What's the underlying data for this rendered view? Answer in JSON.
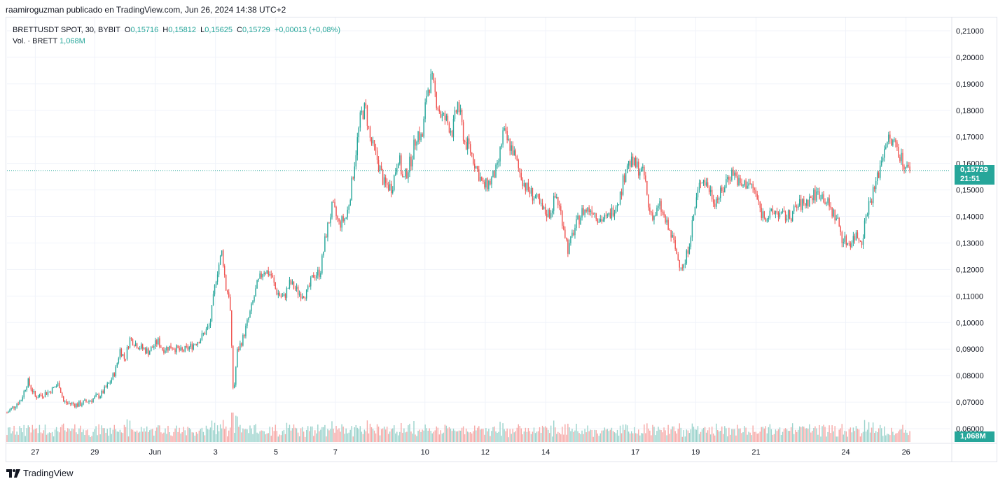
{
  "header": {
    "attribution": "raamiroguzman publicado en TradingView.com, Jun 26, 2024 14:38 UTC+2"
  },
  "legend": {
    "symbol": "BRETTUSDT SPOT, 30, BYBIT",
    "open_label": "O",
    "open": "0,15716",
    "high_label": "H",
    "high": "0,15812",
    "low_label": "L",
    "low": "0,15625",
    "close_label": "C",
    "close": "0,15729",
    "change": "+0,00013 (+0,08%)",
    "volume_label": "Vol. · BRETT",
    "volume": "1,068M"
  },
  "badges": {
    "price": "0,15729",
    "countdown": "21:51",
    "volume": "1,068M"
  },
  "footer": {
    "brand": "TradingView"
  },
  "colors": {
    "up": "#26a69a",
    "down": "#ef5350",
    "up_volume": "#9bd3cc",
    "down_volume": "#f6a9a7",
    "grid": "#f0f3fa"
  },
  "chart_data": {
    "type": "candlestick",
    "y_axis_ticks": [
      "0,06000",
      "0,07000",
      "0,08000",
      "0,09000",
      "0,10000",
      "0,11000",
      "0,12000",
      "0,13000",
      "0,14000",
      "0,15000",
      "0,16000",
      "0,17000",
      "0,18000",
      "0,19000",
      "0,20000",
      "0,21000"
    ],
    "y_tick_values": [
      0.06,
      0.07,
      0.08,
      0.09,
      0.1,
      0.11,
      0.12,
      0.13,
      0.14,
      0.15,
      0.16,
      0.17,
      0.18,
      0.19,
      0.2,
      0.21
    ],
    "ylim": [
      0.055,
      0.215
    ],
    "x_axis_ticks": [
      {
        "label": "27",
        "t": 0.03
      },
      {
        "label": "29",
        "t": 0.093
      },
      {
        "label": "Jun",
        "t": 0.157
      },
      {
        "label": "3",
        "t": 0.221
      },
      {
        "label": "5",
        "t": 0.285
      },
      {
        "label": "7",
        "t": 0.348
      },
      {
        "label": "10",
        "t": 0.443
      },
      {
        "label": "12",
        "t": 0.507
      },
      {
        "label": "14",
        "t": 0.571
      },
      {
        "label": "17",
        "t": 0.666
      },
      {
        "label": "19",
        "t": 0.73
      },
      {
        "label": "21",
        "t": 0.794
      },
      {
        "label": "24",
        "t": 0.889
      },
      {
        "label": "26",
        "t": 0.953
      }
    ],
    "x_domain": [
      0,
      1
    ],
    "last_price": 0.15729,
    "close_path": [
      [
        0.0,
        0.066
      ],
      [
        0.015,
        0.071
      ],
      [
        0.022,
        0.078
      ],
      [
        0.03,
        0.072
      ],
      [
        0.045,
        0.074
      ],
      [
        0.055,
        0.077
      ],
      [
        0.06,
        0.07
      ],
      [
        0.075,
        0.069
      ],
      [
        0.09,
        0.071
      ],
      [
        0.1,
        0.073
      ],
      [
        0.11,
        0.078
      ],
      [
        0.115,
        0.082
      ],
      [
        0.12,
        0.09
      ],
      [
        0.125,
        0.086
      ],
      [
        0.13,
        0.094
      ],
      [
        0.14,
        0.091
      ],
      [
        0.15,
        0.089
      ],
      [
        0.16,
        0.093
      ],
      [
        0.165,
        0.09
      ],
      [
        0.175,
        0.091
      ],
      [
        0.185,
        0.089
      ],
      [
        0.195,
        0.091
      ],
      [
        0.205,
        0.094
      ],
      [
        0.215,
        0.099
      ],
      [
        0.222,
        0.118
      ],
      [
        0.228,
        0.127
      ],
      [
        0.232,
        0.113
      ],
      [
        0.236,
        0.11
      ],
      [
        0.24,
        0.072
      ],
      [
        0.244,
        0.089
      ],
      [
        0.25,
        0.094
      ],
      [
        0.258,
        0.104
      ],
      [
        0.265,
        0.114
      ],
      [
        0.272,
        0.12
      ],
      [
        0.28,
        0.118
      ],
      [
        0.285,
        0.112
      ],
      [
        0.293,
        0.109
      ],
      [
        0.3,
        0.115
      ],
      [
        0.31,
        0.111
      ],
      [
        0.318,
        0.111
      ],
      [
        0.325,
        0.118
      ],
      [
        0.332,
        0.119
      ],
      [
        0.338,
        0.133
      ],
      [
        0.345,
        0.144
      ],
      [
        0.352,
        0.137
      ],
      [
        0.36,
        0.14
      ],
      [
        0.365,
        0.151
      ],
      [
        0.37,
        0.165
      ],
      [
        0.375,
        0.178
      ],
      [
        0.38,
        0.181
      ],
      [
        0.385,
        0.169
      ],
      [
        0.392,
        0.162
      ],
      [
        0.4,
        0.152
      ],
      [
        0.408,
        0.151
      ],
      [
        0.415,
        0.163
      ],
      [
        0.42,
        0.153
      ],
      [
        0.428,
        0.161
      ],
      [
        0.435,
        0.172
      ],
      [
        0.44,
        0.169
      ],
      [
        0.445,
        0.187
      ],
      [
        0.45,
        0.192
      ],
      [
        0.455,
        0.184
      ],
      [
        0.46,
        0.178
      ],
      [
        0.466,
        0.176
      ],
      [
        0.472,
        0.172
      ],
      [
        0.478,
        0.183
      ],
      [
        0.485,
        0.168
      ],
      [
        0.49,
        0.166
      ],
      [
        0.5,
        0.156
      ],
      [
        0.505,
        0.151
      ],
      [
        0.512,
        0.153
      ],
      [
        0.52,
        0.158
      ],
      [
        0.526,
        0.172
      ],
      [
        0.531,
        0.168
      ],
      [
        0.536,
        0.165
      ],
      [
        0.542,
        0.158
      ],
      [
        0.55,
        0.151
      ],
      [
        0.56,
        0.147
      ],
      [
        0.568,
        0.142
      ],
      [
        0.575,
        0.141
      ],
      [
        0.582,
        0.148
      ],
      [
        0.588,
        0.14
      ],
      [
        0.595,
        0.127
      ],
      [
        0.6,
        0.134
      ],
      [
        0.61,
        0.142
      ],
      [
        0.62,
        0.143
      ],
      [
        0.628,
        0.139
      ],
      [
        0.636,
        0.139
      ],
      [
        0.643,
        0.143
      ],
      [
        0.65,
        0.148
      ],
      [
        0.657,
        0.16
      ],
      [
        0.663,
        0.16
      ],
      [
        0.67,
        0.158
      ],
      [
        0.676,
        0.155
      ],
      [
        0.68,
        0.143
      ],
      [
        0.686,
        0.14
      ],
      [
        0.692,
        0.144
      ],
      [
        0.7,
        0.136
      ],
      [
        0.706,
        0.131
      ],
      [
        0.712,
        0.123
      ],
      [
        0.718,
        0.121
      ],
      [
        0.724,
        0.132
      ],
      [
        0.73,
        0.145
      ],
      [
        0.736,
        0.155
      ],
      [
        0.742,
        0.152
      ],
      [
        0.75,
        0.146
      ],
      [
        0.758,
        0.149
      ],
      [
        0.764,
        0.155
      ],
      [
        0.77,
        0.157
      ],
      [
        0.778,
        0.151
      ],
      [
        0.785,
        0.153
      ],
      [
        0.792,
        0.15
      ],
      [
        0.8,
        0.141
      ],
      [
        0.808,
        0.14
      ],
      [
        0.815,
        0.142
      ],
      [
        0.822,
        0.14
      ],
      [
        0.83,
        0.14
      ],
      [
        0.838,
        0.144
      ],
      [
        0.846,
        0.145
      ],
      [
        0.855,
        0.148
      ],
      [
        0.862,
        0.149
      ],
      [
        0.868,
        0.146
      ],
      [
        0.874,
        0.142
      ],
      [
        0.88,
        0.139
      ],
      [
        0.886,
        0.131
      ],
      [
        0.893,
        0.13
      ],
      [
        0.9,
        0.133
      ],
      [
        0.906,
        0.131
      ],
      [
        0.912,
        0.143
      ],
      [
        0.918,
        0.149
      ],
      [
        0.923,
        0.155
      ],
      [
        0.928,
        0.163
      ],
      [
        0.932,
        0.169
      ],
      [
        0.937,
        0.168
      ],
      [
        0.943,
        0.167
      ],
      [
        0.948,
        0.162
      ],
      [
        0.953,
        0.158
      ],
      [
        0.957,
        0.1573
      ]
    ],
    "volume_ylim": [
      0,
      1.0
    ],
    "volume_samples_note": ""
  }
}
